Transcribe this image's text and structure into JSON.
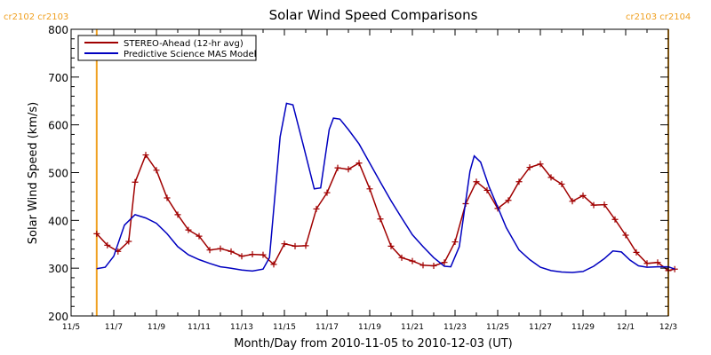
{
  "chart_data": {
    "type": "line",
    "title": "Solar Wind Speed Comparisons",
    "xlabel": "Month/Day from 2010-11-05 to 2010-12-03 (UT)",
    "ylabel": "Solar Wind Speed (km/s)",
    "xlim": [
      "2010-11-05",
      "2010-12-03"
    ],
    "ylim": [
      200,
      800
    ],
    "x_tick_labels": [
      "11/5",
      "11/7",
      "11/9",
      "11/11",
      "11/13",
      "11/15",
      "11/17",
      "11/19",
      "11/21",
      "11/23",
      "11/25",
      "11/27",
      "11/29",
      "12/1",
      "12/3"
    ],
    "y_tick_labels": [
      "200",
      "300",
      "400",
      "500",
      "600",
      "700",
      "800"
    ],
    "grid": false,
    "legend_position": "top-left",
    "vertical_markers": [
      {
        "date": "2010-11-06.2",
        "labels": [
          "cr2102",
          "cr2103"
        ],
        "color": "#f0a020"
      },
      {
        "date": "2010-12-03.0",
        "labels": [
          "cr2103",
          "cr2104"
        ],
        "color": "#f0a020"
      }
    ],
    "series": [
      {
        "name": "STEREO-Ahead (12-hr avg)",
        "color": "#a00000",
        "marker": "plus",
        "points": [
          [
            "2010-11-06.2",
            372
          ],
          [
            "2010-11-06.7",
            348
          ],
          [
            "2010-11-07.2",
            335
          ],
          [
            "2010-11-07.7",
            356
          ],
          [
            "2010-11-08.0",
            480
          ],
          [
            "2010-11-08.5",
            537
          ],
          [
            "2010-11-09.0",
            505
          ],
          [
            "2010-11-09.5",
            447
          ],
          [
            "2010-11-10.0",
            412
          ],
          [
            "2010-11-10.5",
            380
          ],
          [
            "2010-11-11.0",
            367
          ],
          [
            "2010-11-11.5",
            338
          ],
          [
            "2010-11-12.0",
            341
          ],
          [
            "2010-11-12.5",
            335
          ],
          [
            "2010-11-13.0",
            325
          ],
          [
            "2010-11-13.5",
            329
          ],
          [
            "2010-11-14.0",
            328
          ],
          [
            "2010-11-14.5",
            308
          ],
          [
            "2010-11-15.0",
            351
          ],
          [
            "2010-11-15.5",
            346
          ],
          [
            "2010-11-16.0",
            347
          ],
          [
            "2010-11-16.5",
            424
          ],
          [
            "2010-11-17.0",
            458
          ],
          [
            "2010-11-17.5",
            510
          ],
          [
            "2010-11-18.0",
            507
          ],
          [
            "2010-11-18.5",
            520
          ],
          [
            "2010-11-19.0",
            466
          ],
          [
            "2010-11-19.5",
            403
          ],
          [
            "2010-11-20.0",
            346
          ],
          [
            "2010-11-20.5",
            322
          ],
          [
            "2010-11-21.0",
            315
          ],
          [
            "2010-11-21.5",
            306
          ],
          [
            "2010-11-22.0",
            305
          ],
          [
            "2010-11-22.5",
            312
          ],
          [
            "2010-11-23.0",
            355
          ],
          [
            "2010-11-23.5",
            435
          ],
          [
            "2010-11-24.0",
            481
          ],
          [
            "2010-11-24.5",
            463
          ],
          [
            "2010-11-25.0",
            425
          ],
          [
            "2010-11-25.5",
            442
          ],
          [
            "2010-11-26.0",
            481
          ],
          [
            "2010-11-26.5",
            511
          ],
          [
            "2010-11-27.0",
            518
          ],
          [
            "2010-11-27.5",
            490
          ],
          [
            "2010-11-28.0",
            476
          ],
          [
            "2010-11-28.5",
            440
          ],
          [
            "2010-11-29.0",
            452
          ],
          [
            "2010-11-29.5",
            432
          ],
          [
            "2010-11-30.0",
            433
          ],
          [
            "2010-11-30.5",
            402
          ],
          [
            "2010-12-01.0",
            369
          ],
          [
            "2010-12-01.5",
            333
          ],
          [
            "2010-12-02.0",
            310
          ],
          [
            "2010-12-02.5",
            312
          ],
          [
            "2010-12-03.0",
            295
          ],
          [
            "2010-12-03.3",
            298
          ]
        ]
      },
      {
        "name": "Predictive Science MAS Model",
        "color": "#0000c0",
        "marker": "none",
        "points": [
          [
            "2010-11-06.2",
            299
          ],
          [
            "2010-11-06.6",
            302
          ],
          [
            "2010-11-07.0",
            325
          ],
          [
            "2010-11-07.5",
            390
          ],
          [
            "2010-11-08.0",
            412
          ],
          [
            "2010-11-08.5",
            405
          ],
          [
            "2010-11-09.0",
            394
          ],
          [
            "2010-11-09.5",
            372
          ],
          [
            "2010-11-10.0",
            345
          ],
          [
            "2010-11-10.5",
            328
          ],
          [
            "2010-11-11.0",
            318
          ],
          [
            "2010-11-11.5",
            310
          ],
          [
            "2010-11-12.0",
            303
          ],
          [
            "2010-11-12.5",
            300
          ],
          [
            "2010-11-13.0",
            296
          ],
          [
            "2010-11-13.5",
            294
          ],
          [
            "2010-11-14.0",
            298
          ],
          [
            "2010-11-14.3",
            322
          ],
          [
            "2010-11-14.8",
            575
          ],
          [
            "2010-11-15.1",
            645
          ],
          [
            "2010-11-15.4",
            642
          ],
          [
            "2010-11-15.9",
            555
          ],
          [
            "2010-11-16.4",
            466
          ],
          [
            "2010-11-16.7",
            468
          ],
          [
            "2010-11-17.1",
            590
          ],
          [
            "2010-11-17.3",
            614
          ],
          [
            "2010-11-17.6",
            612
          ],
          [
            "2010-11-18.0",
            590
          ],
          [
            "2010-11-18.5",
            560
          ],
          [
            "2010-11-19.0",
            520
          ],
          [
            "2010-11-19.5",
            480
          ],
          [
            "2010-11-20.0",
            441
          ],
          [
            "2010-11-20.5",
            405
          ],
          [
            "2010-11-21.0",
            370
          ],
          [
            "2010-11-21.5",
            345
          ],
          [
            "2010-11-22.0",
            322
          ],
          [
            "2010-11-22.5",
            304
          ],
          [
            "2010-11-22.8",
            303
          ],
          [
            "2010-11-23.2",
            345
          ],
          [
            "2010-11-23.7",
            503
          ],
          [
            "2010-11-23.9",
            535
          ],
          [
            "2010-11-24.2",
            522
          ],
          [
            "2010-11-24.6",
            470
          ],
          [
            "2010-11-25.0",
            428
          ],
          [
            "2010-11-25.4",
            385
          ],
          [
            "2010-11-26.0",
            338
          ],
          [
            "2010-11-26.5",
            318
          ],
          [
            "2010-11-27.0",
            302
          ],
          [
            "2010-11-27.5",
            295
          ],
          [
            "2010-11-28.0",
            292
          ],
          [
            "2010-11-28.5",
            291
          ],
          [
            "2010-11-29.0",
            293
          ],
          [
            "2010-11-29.5",
            304
          ],
          [
            "2010-11-30.0",
            320
          ],
          [
            "2010-11-30.4",
            336
          ],
          [
            "2010-11-30.8",
            334
          ],
          [
            "2010-12-01.2",
            317
          ],
          [
            "2010-12-01.6",
            305
          ],
          [
            "2010-12-02.0",
            302
          ],
          [
            "2010-12-02.5",
            303
          ],
          [
            "2010-12-03.0",
            303
          ],
          [
            "2010-12-03.3",
            298
          ]
        ]
      }
    ]
  }
}
